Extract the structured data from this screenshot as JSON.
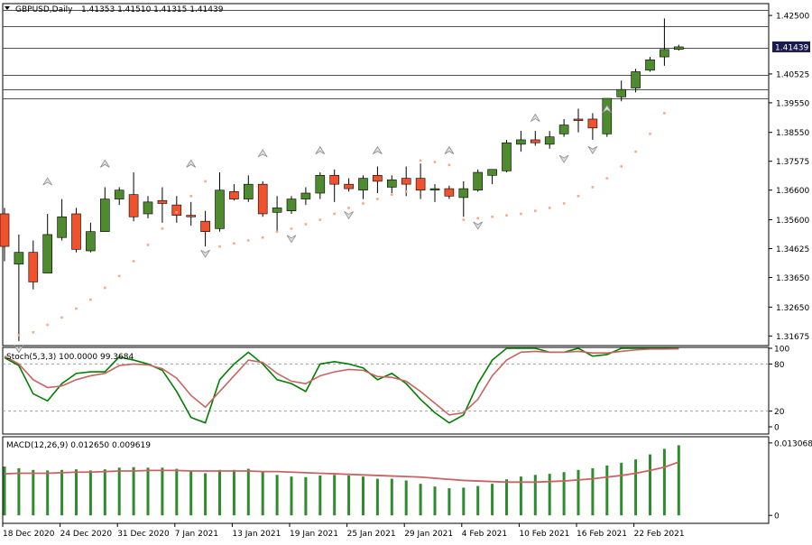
{
  "header": {
    "symbol": "GBPUSD,Daily",
    "ohlc": "1.41353 1.41510 1.41315 1.41439"
  },
  "current_price_label": "1.41439",
  "colors": {
    "bull": "#4e8a2e",
    "bear": "#f0522e",
    "stoch_main": "#008000",
    "stoch_signal": "#c86464",
    "macd_hist": "#2e8b2e",
    "macd_signal": "#c86464",
    "sar": "#f5a98a",
    "fractal": "#8c8c8c",
    "price_tag_bg": "#1a1a4e"
  },
  "chart_data": [
    {
      "type": "candlestick",
      "title": "GBPUSD,Daily",
      "ylim": [
        1.3135,
        1.429
      ],
      "y_ticks": [
        "1.42500",
        "1.40525",
        "1.39550",
        "1.38550",
        "1.37575",
        "1.36600",
        "1.35600",
        "1.34625",
        "1.33650",
        "1.32650",
        "1.31675"
      ],
      "y_tick_values": [
        1.425,
        1.40525,
        1.3955,
        1.3855,
        1.37575,
        1.366,
        1.356,
        1.34625,
        1.3365,
        1.3265,
        1.31675
      ],
      "horizontal_levels": [
        1.427,
        1.4215,
        1.414,
        1.405,
        1.4,
        1.397
      ],
      "x_labels": [
        "18 Dec 2020",
        "24 Dec 2020",
        "31 Dec 2020",
        "7 Jan 2021",
        "13 Jan 2021",
        "19 Jan 2021",
        "25 Jan 2021",
        "29 Jan 2021",
        "4 Feb 2021",
        "10 Feb 2021",
        "16 Feb 2021",
        "22 Feb 2021"
      ],
      "x_label_bar_index": [
        0,
        4,
        8,
        12,
        16,
        20,
        24,
        28,
        32,
        36,
        40,
        44
      ],
      "candles": [
        {
          "o": 1.358,
          "h": 1.36,
          "l": 1.342,
          "c": 1.347
        },
        {
          "o": 1.341,
          "h": 1.351,
          "l": 1.315,
          "c": 1.345
        },
        {
          "o": 1.345,
          "h": 1.349,
          "l": 1.3325,
          "c": 1.335
        },
        {
          "o": 1.338,
          "h": 1.358,
          "l": 1.338,
          "c": 1.351
        },
        {
          "o": 1.35,
          "h": 1.363,
          "l": 1.349,
          "c": 1.357
        },
        {
          "o": 1.358,
          "h": 1.36,
          "l": 1.345,
          "c": 1.346
        },
        {
          "o": 1.3455,
          "h": 1.355,
          "l": 1.345,
          "c": 1.352
        },
        {
          "o": 1.352,
          "h": 1.367,
          "l": 1.352,
          "c": 1.363
        },
        {
          "o": 1.363,
          "h": 1.367,
          "l": 1.361,
          "c": 1.366
        },
        {
          "o": 1.3645,
          "h": 1.372,
          "l": 1.3555,
          "c": 1.357
        },
        {
          "o": 1.358,
          "h": 1.364,
          "l": 1.3565,
          "c": 1.362
        },
        {
          "o": 1.3625,
          "h": 1.367,
          "l": 1.355,
          "c": 1.3615
        },
        {
          "o": 1.361,
          "h": 1.364,
          "l": 1.355,
          "c": 1.3575
        },
        {
          "o": 1.3575,
          "h": 1.362,
          "l": 1.354,
          "c": 1.357
        },
        {
          "o": 1.3555,
          "h": 1.359,
          "l": 1.347,
          "c": 1.352
        },
        {
          "o": 1.353,
          "h": 1.372,
          "l": 1.352,
          "c": 1.366
        },
        {
          "o": 1.3655,
          "h": 1.368,
          "l": 1.3625,
          "c": 1.363
        },
        {
          "o": 1.363,
          "h": 1.371,
          "l": 1.362,
          "c": 1.368
        },
        {
          "o": 1.368,
          "h": 1.369,
          "l": 1.357,
          "c": 1.358
        },
        {
          "o": 1.3585,
          "h": 1.364,
          "l": 1.352,
          "c": 1.36
        },
        {
          "o": 1.359,
          "h": 1.364,
          "l": 1.358,
          "c": 1.363
        },
        {
          "o": 1.363,
          "h": 1.367,
          "l": 1.361,
          "c": 1.365
        },
        {
          "o": 1.365,
          "h": 1.372,
          "l": 1.363,
          "c": 1.371
        },
        {
          "o": 1.371,
          "h": 1.373,
          "l": 1.362,
          "c": 1.368
        },
        {
          "o": 1.368,
          "h": 1.37,
          "l": 1.3655,
          "c": 1.3665
        },
        {
          "o": 1.366,
          "h": 1.371,
          "l": 1.363,
          "c": 1.37
        },
        {
          "o": 1.371,
          "h": 1.374,
          "l": 1.365,
          "c": 1.369
        },
        {
          "o": 1.367,
          "h": 1.371,
          "l": 1.365,
          "c": 1.3695
        },
        {
          "o": 1.37,
          "h": 1.374,
          "l": 1.364,
          "c": 1.368
        },
        {
          "o": 1.37,
          "h": 1.375,
          "l": 1.363,
          "c": 1.366
        },
        {
          "o": 1.366,
          "h": 1.368,
          "l": 1.362,
          "c": 1.3665
        },
        {
          "o": 1.3665,
          "h": 1.3675,
          "l": 1.363,
          "c": 1.364
        },
        {
          "o": 1.3635,
          "h": 1.369,
          "l": 1.357,
          "c": 1.3665
        },
        {
          "o": 1.366,
          "h": 1.373,
          "l": 1.3655,
          "c": 1.372
        },
        {
          "o": 1.371,
          "h": 1.373,
          "l": 1.368,
          "c": 1.373
        },
        {
          "o": 1.3725,
          "h": 1.383,
          "l": 1.372,
          "c": 1.382
        },
        {
          "o": 1.3815,
          "h": 1.386,
          "l": 1.379,
          "c": 1.383
        },
        {
          "o": 1.383,
          "h": 1.386,
          "l": 1.381,
          "c": 1.382
        },
        {
          "o": 1.3815,
          "h": 1.386,
          "l": 1.38,
          "c": 1.384
        },
        {
          "o": 1.385,
          "h": 1.39,
          "l": 1.384,
          "c": 1.388
        },
        {
          "o": 1.39,
          "h": 1.3935,
          "l": 1.3855,
          "c": 1.3895
        },
        {
          "o": 1.39,
          "h": 1.392,
          "l": 1.383,
          "c": 1.387
        },
        {
          "o": 1.385,
          "h": 1.397,
          "l": 1.384,
          "c": 1.397
        },
        {
          "o": 1.3975,
          "h": 1.403,
          "l": 1.396,
          "c": 1.4
        },
        {
          "o": 1.4005,
          "h": 1.407,
          "l": 1.399,
          "c": 1.406
        },
        {
          "o": 1.4065,
          "h": 1.411,
          "l": 1.406,
          "c": 1.41
        },
        {
          "o": 1.411,
          "h": 1.424,
          "l": 1.408,
          "c": 1.4135
        },
        {
          "o": 1.41353,
          "h": 1.4151,
          "l": 1.41315,
          "c": 1.41439
        }
      ],
      "parabolic_sar": [
        null,
        1.317,
        1.318,
        1.3205,
        1.323,
        1.326,
        1.329,
        1.333,
        1.337,
        1.342,
        1.3475,
        1.353,
        1.3585,
        1.364,
        1.369,
        1.347,
        1.348,
        1.349,
        1.35,
        1.352,
        1.353,
        1.3545,
        1.356,
        1.358,
        1.36,
        1.3615,
        1.363,
        1.3645,
        1.3655,
        1.376,
        1.3755,
        1.3745,
        1.356,
        1.3565,
        1.357,
        1.3575,
        1.358,
        1.359,
        1.36,
        1.3615,
        1.364,
        1.367,
        1.37,
        1.374,
        1.379,
        1.385,
        1.392,
        null
      ],
      "fractals_up": [
        {
          "bar": 3,
          "price": 1.3665
        },
        {
          "bar": 7,
          "price": 1.3725
        },
        {
          "bar": 13,
          "price": 1.3725
        },
        {
          "bar": 18,
          "price": 1.376
        },
        {
          "bar": 22,
          "price": 1.377
        },
        {
          "bar": 26,
          "price": 1.377
        },
        {
          "bar": 31,
          "price": 1.377
        },
        {
          "bar": 37,
          "price": 1.388
        },
        {
          "bar": 42,
          "price": 1.391
        }
      ],
      "fractals_down": [
        {
          "bar": 1,
          "price": 1.3148
        },
        {
          "bar": 14,
          "price": 1.347
        },
        {
          "bar": 20,
          "price": 1.352
        },
        {
          "bar": 24,
          "price": 1.36
        },
        {
          "bar": 33,
          "price": 1.3565
        },
        {
          "bar": 39,
          "price": 1.379
        },
        {
          "bar": 41,
          "price": 1.382
        }
      ]
    },
    {
      "type": "line",
      "title": "Stoch(5,3,3) 100.0000 99.3684",
      "ylim": [
        0,
        100
      ],
      "y_ticks": [
        "100",
        "80",
        "20",
        "0"
      ],
      "y_tick_values": [
        100,
        80,
        20,
        0
      ],
      "levels": [
        80,
        20
      ],
      "series": [
        {
          "name": "main",
          "values": [
            88,
            78,
            42,
            33,
            55,
            68,
            70,
            70,
            89,
            85,
            80,
            72,
            45,
            12,
            5,
            60,
            80,
            95,
            80,
            60,
            55,
            45,
            80,
            83,
            80,
            75,
            60,
            68,
            55,
            35,
            18,
            5,
            15,
            55,
            85,
            100,
            100,
            100,
            95,
            95,
            100,
            90,
            92,
            100,
            100,
            100,
            100,
            100
          ]
        },
        {
          "name": "signal",
          "values": [
            90,
            80,
            60,
            50,
            52,
            60,
            65,
            68,
            78,
            80,
            79,
            74,
            62,
            40,
            25,
            45,
            65,
            85,
            82,
            68,
            58,
            55,
            65,
            70,
            73,
            72,
            64,
            63,
            58,
            45,
            30,
            15,
            18,
            35,
            65,
            85,
            95,
            96,
            95,
            95,
            96,
            94,
            94,
            96,
            98,
            99,
            99,
            99.3684
          ]
        }
      ]
    },
    {
      "type": "bar",
      "title": "MACD(12,26,9) 0.012650 0.009619",
      "ylim": [
        -0.0003,
        0.0137
      ],
      "y_ticks": [
        "0.013068",
        "0"
      ],
      "y_tick_values": [
        0.013068,
        0
      ],
      "series": [
        {
          "name": "histogram",
          "values": [
            0.0088,
            0.0085,
            0.0082,
            0.0081,
            0.0082,
            0.0083,
            0.0081,
            0.0083,
            0.0086,
            0.0087,
            0.0086,
            0.0086,
            0.0084,
            0.008,
            0.0076,
            0.0082,
            0.0082,
            0.0084,
            0.0078,
            0.0073,
            0.007,
            0.0069,
            0.0072,
            0.0073,
            0.0072,
            0.007,
            0.0066,
            0.0066,
            0.0063,
            0.0057,
            0.0052,
            0.0049,
            0.005,
            0.0053,
            0.0057,
            0.0065,
            0.007,
            0.0073,
            0.0075,
            0.0078,
            0.0082,
            0.0085,
            0.009,
            0.0095,
            0.0101,
            0.011,
            0.012,
            0.01265
          ]
        },
        {
          "name": "signal",
          "values": [
            0.0075,
            0.0076,
            0.0076,
            0.0076,
            0.0077,
            0.0078,
            0.0078,
            0.0079,
            0.008,
            0.008,
            0.0081,
            0.0081,
            0.0081,
            0.008,
            0.008,
            0.008,
            0.008,
            0.008,
            0.0079,
            0.0079,
            0.0078,
            0.0077,
            0.0076,
            0.0075,
            0.0074,
            0.0073,
            0.0072,
            0.0071,
            0.007,
            0.0069,
            0.0067,
            0.0065,
            0.0063,
            0.0062,
            0.0061,
            0.006,
            0.006,
            0.006,
            0.0061,
            0.0062,
            0.0064,
            0.0066,
            0.0069,
            0.0072,
            0.0076,
            0.0081,
            0.0087,
            0.009619
          ]
        }
      ]
    }
  ]
}
